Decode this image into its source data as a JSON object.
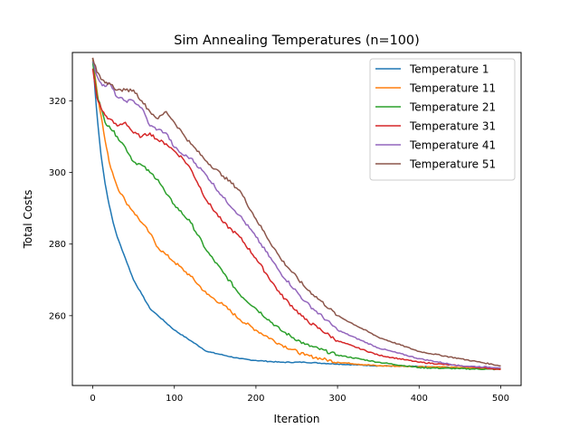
{
  "chart_data": {
    "type": "line",
    "title": "Sim Annealing Temperatures (n=100)",
    "xlabel": "Iteration",
    "ylabel": "Total Costs",
    "xlim": [
      -25,
      525
    ],
    "ylim": [
      240.5,
      333.5
    ],
    "xticks": [
      0,
      100,
      200,
      300,
      400,
      500
    ],
    "yticks": [
      260,
      280,
      300,
      320
    ],
    "grid": false,
    "legend_position": "top-right",
    "series": [
      {
        "name": "Temperature 1",
        "color": "#1f77b4",
        "x": [
          0,
          3,
          6,
          10,
          15,
          20,
          25,
          30,
          40,
          50,
          60,
          70,
          80,
          90,
          100,
          120,
          140,
          160,
          180,
          200,
          230,
          260,
          300,
          350,
          400,
          450,
          500
        ],
        "y": [
          332,
          322,
          314,
          305,
          297,
          291,
          286,
          282,
          276,
          270,
          266,
          262,
          260,
          258,
          256,
          253,
          250,
          249,
          248,
          247.5,
          247,
          247,
          246.5,
          246,
          245.8,
          245.5,
          245.3
        ]
      },
      {
        "name": "Temperature 11",
        "color": "#ff7f0e",
        "x": [
          0,
          5,
          10,
          15,
          20,
          30,
          40,
          50,
          60,
          70,
          80,
          90,
          100,
          120,
          140,
          160,
          180,
          200,
          230,
          260,
          300,
          350,
          400,
          450,
          500
        ],
        "y": [
          332,
          323,
          316,
          309,
          303,
          296,
          292,
          289,
          286,
          283,
          279,
          277,
          275,
          271,
          266,
          263,
          259,
          256,
          252,
          249,
          247,
          246,
          245.8,
          245.5,
          245.2
        ]
      },
      {
        "name": "Temperature 21",
        "color": "#2ca02c",
        "x": [
          0,
          5,
          10,
          15,
          20,
          30,
          40,
          50,
          60,
          70,
          80,
          90,
          100,
          120,
          140,
          160,
          180,
          200,
          230,
          260,
          300,
          350,
          400,
          450,
          500
        ],
        "y": [
          331,
          322,
          318,
          314,
          313,
          310,
          307,
          303,
          302,
          300,
          298,
          294,
          291,
          286,
          278,
          272,
          266,
          262,
          256,
          252,
          249,
          247,
          245.5,
          245.2,
          245
        ]
      },
      {
        "name": "Temperature 31",
        "color": "#d62728",
        "x": [
          0,
          5,
          10,
          15,
          20,
          30,
          40,
          50,
          60,
          70,
          80,
          90,
          100,
          110,
          120,
          140,
          160,
          180,
          200,
          230,
          260,
          300,
          350,
          400,
          450,
          500
        ],
        "y": [
          329,
          321,
          318,
          316,
          315,
          313,
          314,
          311,
          310,
          311,
          309,
          308,
          306,
          304,
          301,
          292,
          286,
          282,
          276,
          266,
          259,
          253,
          249,
          247,
          246,
          245
        ]
      },
      {
        "name": "Temperature 41",
        "color": "#9467bd",
        "x": [
          0,
          5,
          10,
          15,
          20,
          30,
          40,
          50,
          60,
          70,
          80,
          90,
          100,
          110,
          120,
          140,
          160,
          180,
          200,
          230,
          260,
          300,
          350,
          400,
          450,
          500
        ],
        "y": [
          331,
          327,
          325,
          324,
          325,
          321,
          320,
          320,
          318,
          313,
          312,
          311,
          307,
          305,
          304,
          299,
          293,
          288,
          282,
          272,
          264,
          256,
          251,
          248,
          246,
          245.5
        ]
      },
      {
        "name": "Temperature 51",
        "color": "#8c564b",
        "x": [
          0,
          5,
          10,
          15,
          20,
          30,
          40,
          50,
          60,
          70,
          80,
          90,
          100,
          110,
          120,
          140,
          160,
          180,
          200,
          230,
          260,
          300,
          350,
          400,
          450,
          500
        ],
        "y": [
          332,
          328,
          326,
          325,
          325,
          323,
          323,
          323,
          320,
          317,
          315,
          317,
          314,
          311,
          308,
          303,
          299,
          295,
          287,
          276,
          268,
          260,
          254,
          250,
          248,
          246
        ]
      }
    ]
  }
}
